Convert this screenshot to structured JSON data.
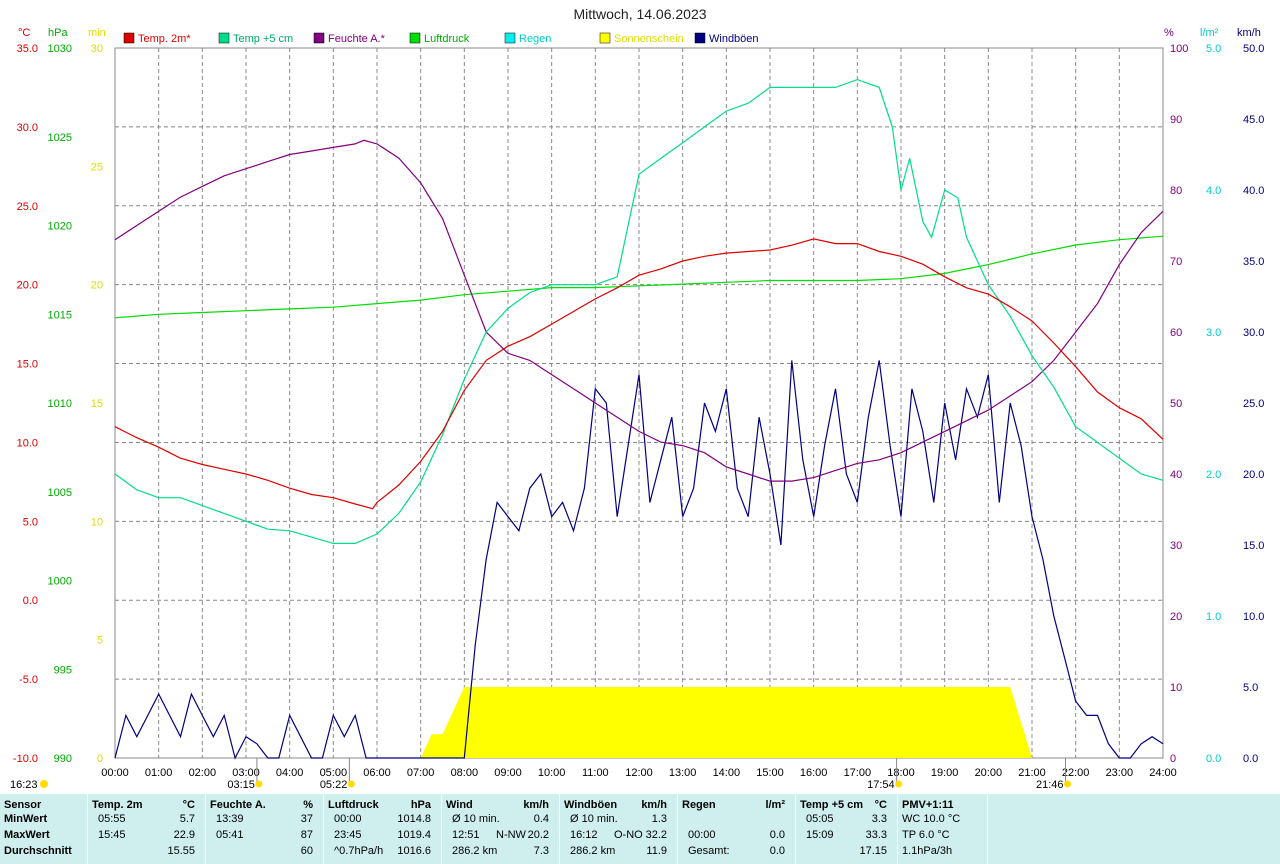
{
  "title": "Mittwoch, 14.06.2023",
  "colors": {
    "temp2m": "#dd0000",
    "temp5cm": "#00dd88",
    "humidity": "#800080",
    "pressure": "#00dd00",
    "rain": "#00eeee",
    "sunshine": "#ffff00",
    "gust": "#000080"
  },
  "legend": [
    {
      "label": "Temp. 2m*",
      "color": "#dd0000"
    },
    {
      "label": "Temp +5 cm",
      "color": "#00dd88"
    },
    {
      "label": "Feuchte A.*",
      "color": "#800080"
    },
    {
      "label": "Luftdruck",
      "color": "#00dd00"
    },
    {
      "label": "Regen",
      "color": "#00eeee"
    },
    {
      "label": "Sonnenschein",
      "color": "#ffff00"
    },
    {
      "label": "Windböen",
      "color": "#000080"
    }
  ],
  "axes": {
    "temp": {
      "unit": "°C",
      "ticks": [
        "35.0",
        "30.0",
        "25.0",
        "20.0",
        "15.0",
        "10.0",
        "5.0",
        "0.0",
        "-5.0",
        "-10.0"
      ],
      "range": [
        -10,
        35
      ]
    },
    "pressure": {
      "unit": "hPa",
      "ticks": [
        "1030",
        "1025",
        "1020",
        "1015",
        "1010",
        "1005",
        "1000",
        "995",
        "990"
      ],
      "range": [
        990,
        1030
      ]
    },
    "sun": {
      "unit": "min",
      "ticks": [
        "30",
        "25",
        "20",
        "15",
        "10",
        "5",
        "0"
      ],
      "range": [
        0,
        30
      ]
    },
    "humidity": {
      "unit": "%",
      "ticks": [
        "100",
        "90",
        "80",
        "70",
        "60",
        "50",
        "40",
        "30",
        "20",
        "10",
        "0"
      ],
      "range": [
        0,
        100
      ]
    },
    "rain": {
      "unit": "l/m²",
      "ticks": [
        "5.0",
        "4.0",
        "3.0",
        "2.0",
        "1.0",
        "0.0"
      ],
      "range": [
        0,
        5
      ]
    },
    "wind": {
      "unit": "km/h",
      "ticks": [
        "50.0",
        "45.0",
        "40.0",
        "35.0",
        "30.0",
        "25.0",
        "20.0",
        "15.0",
        "10.0",
        "5.0",
        "0.0"
      ],
      "range": [
        0,
        50
      ]
    },
    "time": [
      "00:00",
      "01:00",
      "02:00",
      "03:00",
      "04:00",
      "05:00",
      "06:00",
      "07:00",
      "08:00",
      "09:00",
      "10:00",
      "11:00",
      "12:00",
      "13:00",
      "14:00",
      "15:00",
      "16:00",
      "17:00",
      "18:00",
      "19:00",
      "20:00",
      "21:00",
      "22:00",
      "23:00",
      "24:00"
    ]
  },
  "markers": [
    {
      "label": "03:15",
      "hour": 3.25,
      "icon": "moonrise-icon"
    },
    {
      "label": "05:22",
      "hour": 5.367,
      "icon": "sunrise-icon"
    },
    {
      "label": "17:54",
      "hour": 17.9,
      "icon": "moonset-icon"
    },
    {
      "label": "21:46",
      "hour": 21.767,
      "icon": "sunset-icon"
    },
    {
      "label": "16:23",
      "hour": -1,
      "icon": "sun-icon"
    }
  ],
  "chart_data": {
    "type": "line",
    "title": "Mittwoch, 14.06.2023",
    "x_unit": "hour",
    "series": [
      {
        "name": "Temp. 2m*",
        "unit": "°C",
        "x": [
          0,
          0.5,
          1,
          1.5,
          2,
          2.5,
          3,
          3.5,
          4,
          4.5,
          5,
          5.5,
          5.9,
          6,
          6.5,
          7,
          7.5,
          8,
          8.5,
          9,
          9.5,
          10,
          10.5,
          11,
          11.5,
          12,
          12.5,
          13,
          13.5,
          14,
          14.5,
          15,
          15.5,
          16,
          16.5,
          17,
          17.5,
          18,
          18.5,
          19,
          19.5,
          20,
          20.5,
          21,
          21.5,
          22,
          22.5,
          23,
          23.5,
          24
        ],
        "y": [
          11.0,
          10.3,
          9.7,
          9.0,
          8.6,
          8.3,
          8.0,
          7.6,
          7.1,
          6.7,
          6.5,
          6.1,
          5.8,
          6.2,
          7.3,
          8.8,
          10.7,
          13.3,
          15.2,
          16.1,
          16.7,
          17.5,
          18.3,
          19.1,
          19.8,
          20.6,
          21.0,
          21.5,
          21.8,
          22.0,
          22.1,
          22.2,
          22.5,
          22.9,
          22.6,
          22.6,
          22.1,
          21.8,
          21.3,
          20.5,
          19.8,
          19.4,
          18.6,
          17.7,
          16.3,
          14.8,
          13.2,
          12.2,
          11.5,
          10.2
        ]
      },
      {
        "name": "Temp +5 cm",
        "unit": "°C",
        "x": [
          0,
          0.5,
          1,
          1.5,
          2,
          2.5,
          3,
          3.5,
          4,
          4.5,
          5,
          5.5,
          6,
          6.5,
          7,
          7.5,
          8,
          8.5,
          9,
          9.5,
          10,
          10.5,
          11,
          11.5,
          12,
          12.5,
          13,
          13.5,
          14,
          14.5,
          15,
          15.5,
          16,
          16.5,
          17,
          17.5,
          17.8,
          18,
          18.2,
          18.5,
          18.7,
          19,
          19.3,
          19.5,
          20,
          20.5,
          21,
          21.5,
          22,
          22.5,
          23,
          23.5,
          24
        ],
        "y": [
          8.0,
          7.0,
          6.5,
          6.5,
          6.0,
          5.5,
          5.0,
          4.5,
          4.4,
          4.0,
          3.6,
          3.6,
          4.2,
          5.5,
          7.5,
          10.5,
          14.0,
          17.0,
          18.5,
          19.5,
          20.0,
          20.0,
          20.0,
          20.5,
          27.0,
          28.0,
          29.0,
          30.0,
          31.0,
          31.5,
          32.5,
          32.5,
          32.5,
          32.5,
          33.0,
          32.5,
          30.0,
          26.0,
          28.0,
          24.0,
          23.0,
          26.0,
          25.5,
          23.0,
          20.0,
          18.0,
          15.5,
          13.5,
          11.0,
          10.0,
          9.0,
          8.0,
          7.6
        ]
      },
      {
        "name": "Feuchte A.*",
        "unit": "%",
        "x": [
          0,
          0.5,
          1,
          1.5,
          2,
          2.5,
          3,
          3.5,
          4,
          4.5,
          5,
          5.5,
          5.7,
          6,
          6.5,
          7,
          7.5,
          8,
          8.5,
          9,
          9.5,
          10,
          10.5,
          11,
          11.5,
          12,
          12.5,
          13,
          13.5,
          14,
          14.5,
          15,
          15.5,
          16,
          16.5,
          17,
          17.5,
          18,
          18.5,
          19,
          19.5,
          20,
          20.5,
          21,
          21.5,
          22,
          22.5,
          23,
          23.5,
          24
        ],
        "y": [
          73.0,
          75.0,
          77.0,
          79.0,
          80.5,
          82.0,
          83.0,
          84.0,
          85.0,
          85.5,
          86.0,
          86.5,
          87.0,
          86.5,
          84.5,
          81.0,
          76.0,
          68.0,
          60.0,
          57.0,
          56.0,
          54.0,
          52.0,
          50.0,
          48.0,
          46.0,
          44.5,
          44.0,
          43.0,
          41.0,
          40.0,
          39.0,
          39.0,
          39.5,
          40.5,
          41.5,
          42.0,
          43.0,
          44.5,
          46.0,
          47.5,
          49.0,
          51.0,
          53.0,
          56.0,
          60.0,
          64.0,
          69.5,
          74.0,
          77.0
        ]
      },
      {
        "name": "Luftdruck",
        "unit": "hPa",
        "x": [
          0,
          1,
          2,
          3,
          4,
          5,
          6,
          7,
          8,
          9,
          10,
          11,
          12,
          13,
          14,
          15,
          16,
          17,
          18,
          19,
          20,
          21,
          22,
          23,
          24
        ],
        "y": [
          1014.8,
          1015.0,
          1015.1,
          1015.2,
          1015.3,
          1015.4,
          1015.6,
          1015.8,
          1016.1,
          1016.3,
          1016.5,
          1016.5,
          1016.6,
          1016.7,
          1016.8,
          1016.9,
          1016.9,
          1016.9,
          1017.0,
          1017.3,
          1017.8,
          1018.4,
          1018.9,
          1019.2,
          1019.4
        ]
      },
      {
        "name": "Windböen",
        "unit": "km/h",
        "x": [
          0,
          0.25,
          0.5,
          0.75,
          1,
          1.25,
          1.5,
          1.75,
          2,
          2.25,
          2.5,
          2.75,
          3,
          3.25,
          3.5,
          3.75,
          4,
          4.25,
          4.5,
          4.75,
          5,
          5.25,
          5.5,
          5.75,
          6,
          6.25,
          6.5,
          6.75,
          7,
          7.25,
          7.5,
          7.75,
          8,
          8.25,
          8.5,
          8.75,
          9,
          9.25,
          9.5,
          9.75,
          10,
          10.25,
          10.5,
          10.75,
          11,
          11.25,
          11.5,
          11.75,
          12,
          12.25,
          12.5,
          12.75,
          13,
          13.25,
          13.5,
          13.75,
          14,
          14.25,
          14.5,
          14.75,
          15,
          15.25,
          15.5,
          15.75,
          16,
          16.25,
          16.5,
          16.75,
          17,
          17.25,
          17.5,
          17.75,
          18,
          18.25,
          18.5,
          18.75,
          19,
          19.25,
          19.5,
          19.75,
          20,
          20.25,
          20.5,
          20.75,
          21,
          21.25,
          21.5,
          21.75,
          22,
          22.25,
          22.5,
          22.75,
          23,
          23.25,
          23.5,
          23.75,
          24
        ],
        "y": [
          0,
          3,
          1.5,
          3,
          4.5,
          3,
          1.5,
          4.5,
          3,
          1.5,
          3,
          0,
          1.5,
          1,
          0,
          0,
          3,
          1.5,
          0,
          0,
          3,
          1.5,
          3,
          0,
          0,
          0,
          0,
          0,
          0,
          0,
          0,
          0,
          0,
          8,
          14,
          18,
          17,
          16,
          19,
          20,
          17,
          18,
          16,
          19,
          26,
          25,
          17,
          22,
          27,
          18,
          21,
          24,
          17,
          19,
          25,
          23,
          26,
          19,
          17,
          24,
          20,
          15,
          28,
          21,
          17,
          22,
          26,
          20,
          18,
          24,
          28,
          22,
          17,
          26,
          23,
          18,
          25,
          21,
          26,
          24,
          27,
          18,
          25,
          22,
          17,
          14,
          10,
          7,
          4,
          3,
          3,
          1,
          0,
          0,
          1,
          1.5,
          1
        ]
      },
      {
        "name": "Sonnenschein",
        "unit": "min",
        "x": [
          0,
          7,
          7.25,
          7.5,
          7.75,
          8,
          8.5,
          9,
          10,
          11,
          12,
          13,
          14,
          15,
          16,
          17,
          18,
          19,
          20,
          20.5,
          21,
          22,
          23,
          24
        ],
        "y": [
          0,
          0,
          1,
          1,
          2,
          3,
          3,
          3,
          3,
          3,
          3,
          3,
          3,
          3,
          3,
          3,
          3,
          3,
          3,
          3,
          0,
          0,
          0,
          0
        ]
      }
    ],
    "xlim": [
      0,
      24
    ],
    "grid": true,
    "legend_position": "top"
  },
  "stats": {
    "columns": [
      {
        "title": "Sensor",
        "unit": "",
        "rows": [
          {
            "label": "MinWert"
          },
          {
            "label": "MaxWert"
          },
          {
            "label": "Durchschnitt"
          }
        ]
      },
      {
        "title": "Temp. 2m",
        "unit": "°C",
        "rows": [
          {
            "time": "05:55",
            "value": "5.7"
          },
          {
            "time": "15:45",
            "value": "22.9"
          },
          {
            "time": "",
            "value": "15.55"
          }
        ]
      },
      {
        "title": "Feuchte A.",
        "unit": "%",
        "rows": [
          {
            "time": "13:39",
            "value": "37"
          },
          {
            "time": "05:41",
            "value": "87"
          },
          {
            "time": "",
            "value": "60"
          }
        ]
      },
      {
        "title": "Luftdruck",
        "unit": "hPa",
        "rows": [
          {
            "time": "00:00",
            "value": "1014.8"
          },
          {
            "time": "23:45",
            "value": "1019.4"
          },
          {
            "time": "^0.7hPa/h",
            "value": "1016.6"
          }
        ]
      },
      {
        "title": "Wind",
        "unit": "km/h",
        "rows": [
          {
            "time": "Ø 10 min.",
            "value": "0.4"
          },
          {
            "time": "12:51",
            "mid": "N-NW",
            "value": "20.2"
          },
          {
            "time": "286.2 km",
            "value": "7.3"
          }
        ]
      },
      {
        "title": "Windböen",
        "unit": "km/h",
        "rows": [
          {
            "time": "Ø 10 min.",
            "value": "1.3"
          },
          {
            "time": "16:12",
            "mid": "O-NO",
            "value": "32.2"
          },
          {
            "time": "286.2 km",
            "value": "11.9"
          }
        ]
      },
      {
        "title": "Regen",
        "unit": "l/m²",
        "rows": [
          {
            "time": "",
            "value": ""
          },
          {
            "time": "00:00",
            "value": "0.0"
          },
          {
            "time": "Gesamt:",
            "value": "0.0"
          }
        ]
      },
      {
        "title": "Temp +5 cm",
        "unit": "°C",
        "rows": [
          {
            "time": "05:05",
            "value": "3.3"
          },
          {
            "time": "15:09",
            "value": "33.3"
          },
          {
            "time": "",
            "value": "17.15"
          }
        ]
      },
      {
        "title": "PMV+1:11",
        "unit": "",
        "rows": [
          {
            "time": "WC 10.0 °C"
          },
          {
            "time": "TP 6.0 °C"
          },
          {
            "time": "1.1hPa/3h"
          }
        ]
      }
    ]
  }
}
